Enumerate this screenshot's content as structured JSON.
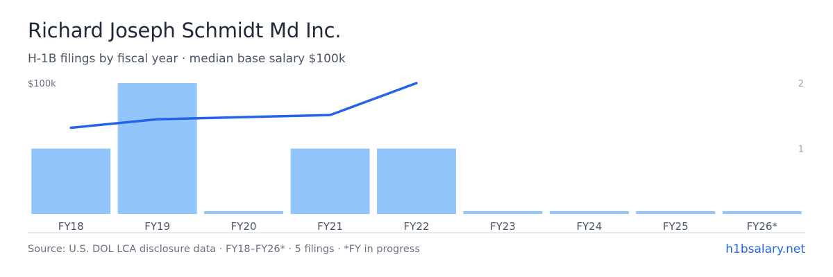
{
  "header": {
    "title": "Richard Joseph Schmidt Md Inc.",
    "subtitle": "H-1B filings by fiscal year · median base salary $100k"
  },
  "footer": {
    "source": "Source: U.S. DOL LCA disclosure data · FY18–FY26* · 5 filings · *FY in progress",
    "brand": "h1bsalary.net"
  },
  "colors": {
    "bar": "#93c5fd",
    "line": "#2563eb",
    "axis_text": "#9ca3af",
    "baseline": "#d1d5db"
  },
  "chart_data": {
    "type": "bar",
    "categories": [
      "FY18",
      "FY19",
      "FY20",
      "FY21",
      "FY22",
      "FY23",
      "FY24",
      "FY25",
      "FY26*"
    ],
    "series": [
      {
        "type": "bar",
        "axis": "right",
        "values": [
          1,
          2,
          0,
          1,
          1,
          0,
          0,
          0,
          0
        ]
      },
      {
        "type": "line",
        "axis": "left",
        "values": [
          81000,
          89000,
          null,
          93000,
          123000,
          null,
          null,
          null,
          null
        ]
      }
    ],
    "left_axis": {
      "label": "$100k",
      "ylim": [
        0,
        123000
      ]
    },
    "right_axis": {
      "ticks": [
        "1",
        "2"
      ],
      "ylim": [
        0,
        2
      ]
    },
    "grid": false,
    "legend": "none"
  }
}
